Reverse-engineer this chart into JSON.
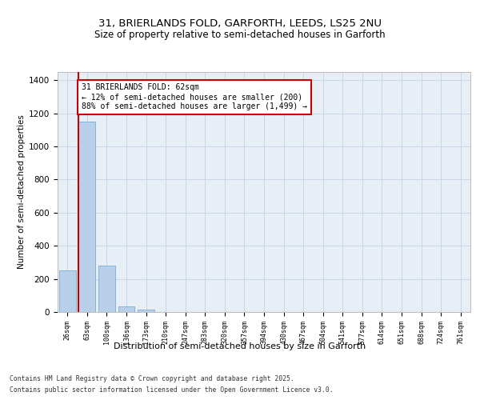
{
  "title_line1": "31, BRIERLANDS FOLD, GARFORTH, LEEDS, LS25 2NU",
  "title_line2": "Size of property relative to semi-detached houses in Garforth",
  "xlabel": "Distribution of semi-detached houses by size in Garforth",
  "ylabel": "Number of semi-detached properties",
  "categories": [
    "26sqm",
    "63sqm",
    "100sqm",
    "136sqm",
    "173sqm",
    "210sqm",
    "247sqm",
    "283sqm",
    "320sqm",
    "357sqm",
    "394sqm",
    "430sqm",
    "467sqm",
    "504sqm",
    "541sqm",
    "577sqm",
    "614sqm",
    "651sqm",
    "688sqm",
    "724sqm",
    "761sqm"
  ],
  "values": [
    250,
    1150,
    280,
    35,
    15,
    2,
    0,
    0,
    0,
    0,
    0,
    0,
    0,
    0,
    0,
    0,
    0,
    0,
    0,
    0,
    0
  ],
  "bar_color": "#b8d0ea",
  "bar_edge_color": "#7aaed4",
  "highlight_line_color": "#cc0000",
  "annotation_text": "31 BRIERLANDS FOLD: 62sqm\n← 12% of semi-detached houses are smaller (200)\n88% of semi-detached houses are larger (1,499) →",
  "annotation_box_color": "#cc0000",
  "ylim": [
    0,
    1450
  ],
  "yticks": [
    0,
    200,
    400,
    600,
    800,
    1000,
    1200,
    1400
  ],
  "grid_color": "#c8d4e8",
  "background_color": "#e8eef6",
  "footnote_line1": "Contains HM Land Registry data © Crown copyright and database right 2025.",
  "footnote_line2": "Contains public sector information licensed under the Open Government Licence v3.0."
}
